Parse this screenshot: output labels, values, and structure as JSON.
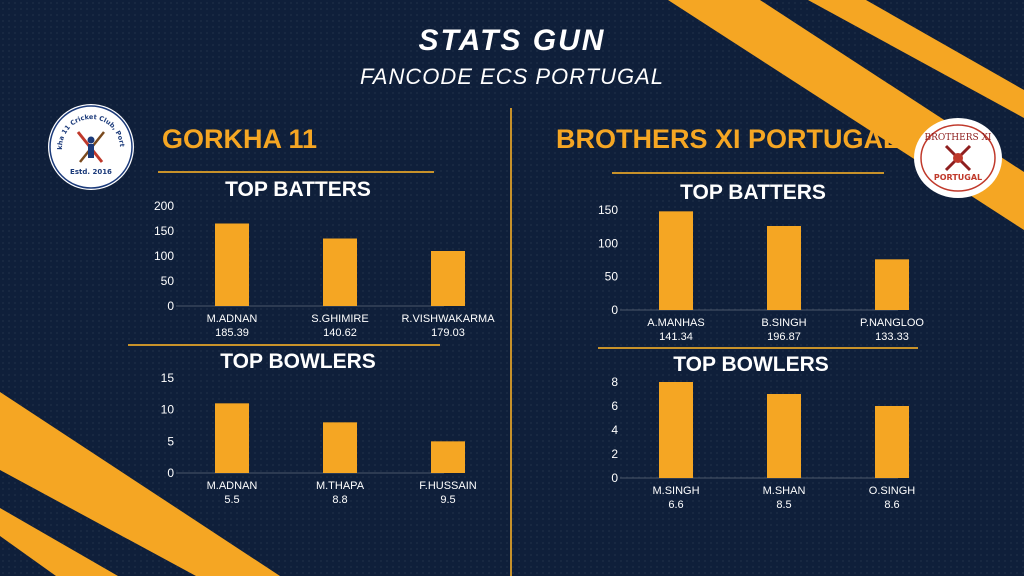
{
  "header": {
    "title": "STATS GUN",
    "subtitle": "FANCODE ECS PORTUGAL"
  },
  "colors": {
    "background": "#0f1f3a",
    "accent": "#f5a623",
    "bar": "#f5a623",
    "text": "#ffffff",
    "divider": "#c8922a"
  },
  "teams": [
    {
      "name": "GORKHA 11",
      "logo": {
        "text_top": "Gorkha 11 Cricket Club, Portugal",
        "text_bottom": "Estd. 2016"
      },
      "batters_title": "TOP BATTERS",
      "bowlers_title": "TOP BOWLERS"
    },
    {
      "name": "BROTHERS XI PORTUGAL",
      "logo": {
        "text_top": "BROTHERS XI",
        "text_bottom": "PORTUGAL"
      },
      "batters_title": "TOP BATTERS",
      "bowlers_title": "TOP BOWLERS"
    }
  ],
  "chart_data": [
    {
      "type": "bar",
      "team": "GORKHA 11",
      "title": "TOP BATTERS",
      "categories": [
        "M.ADNAN",
        "S.GHIMIRE",
        "R.VISHWAKARMA"
      ],
      "sub_labels": [
        "185.39",
        "140.62",
        "179.03"
      ],
      "values": [
        165,
        135,
        110
      ],
      "ylim": [
        0,
        200
      ],
      "yticks": [
        0,
        50,
        100,
        150,
        200
      ],
      "grid": false,
      "legend": "none"
    },
    {
      "type": "bar",
      "team": "GORKHA 11",
      "title": "TOP BOWLERS",
      "categories": [
        "M.ADNAN",
        "M.THAPA",
        "F.HUSSAIN"
      ],
      "sub_labels": [
        "5.5",
        "8.8",
        "9.5"
      ],
      "values": [
        11,
        8,
        5
      ],
      "ylim": [
        0,
        15
      ],
      "yticks": [
        0,
        5,
        10,
        15
      ],
      "grid": false,
      "legend": "none"
    },
    {
      "type": "bar",
      "team": "BROTHERS XI PORTUGAL",
      "title": "TOP BATTERS",
      "categories": [
        "A.MANHAS",
        "B.SINGH",
        "P.NANGLOO"
      ],
      "sub_labels": [
        "141.34",
        "196.87",
        "133.33"
      ],
      "values": [
        148,
        126,
        76
      ],
      "ylim": [
        0,
        150
      ],
      "yticks": [
        0,
        50,
        100,
        150
      ],
      "grid": false,
      "legend": "none"
    },
    {
      "type": "bar",
      "team": "BROTHERS XI PORTUGAL",
      "title": "TOP BOWLERS",
      "categories": [
        "M.SINGH",
        "M.SHAN",
        "O.SINGH"
      ],
      "sub_labels": [
        "6.6",
        "8.5",
        "8.6"
      ],
      "values": [
        8,
        7,
        6
      ],
      "ylim": [
        0,
        8
      ],
      "yticks": [
        0,
        2,
        4,
        6,
        8
      ],
      "grid": false,
      "legend": "none"
    }
  ]
}
